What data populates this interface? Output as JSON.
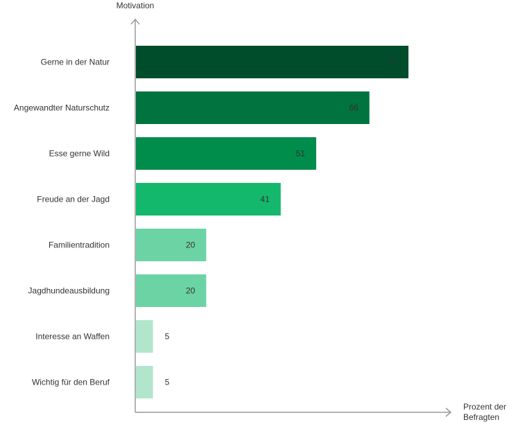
{
  "chart_data": {
    "type": "bar",
    "orientation": "horizontal",
    "title": "",
    "ylabel": "Motivation",
    "xlabel": "Prozent der Befragten",
    "xlabel_lines": [
      "Prozent der",
      "Befragten"
    ],
    "categories": [
      "Gerne in der Natur",
      "Angewandter Naturschutz",
      "Esse gerne Wild",
      "Freude an der Jagd",
      "Familientradition",
      "Jagdhundeausbildung",
      "Interesse an Waffen",
      "Wichtig für den Beruf"
    ],
    "values": [
      77,
      66,
      51,
      41,
      20,
      20,
      5,
      5
    ],
    "colors": [
      "#004d2b",
      "#00733f",
      "#008c4b",
      "#14b86d",
      "#6bd3a4",
      "#6bd3a4",
      "#b1e6cd",
      "#b1e6cd"
    ],
    "xlim": [
      0,
      88
    ],
    "grid": false
  }
}
